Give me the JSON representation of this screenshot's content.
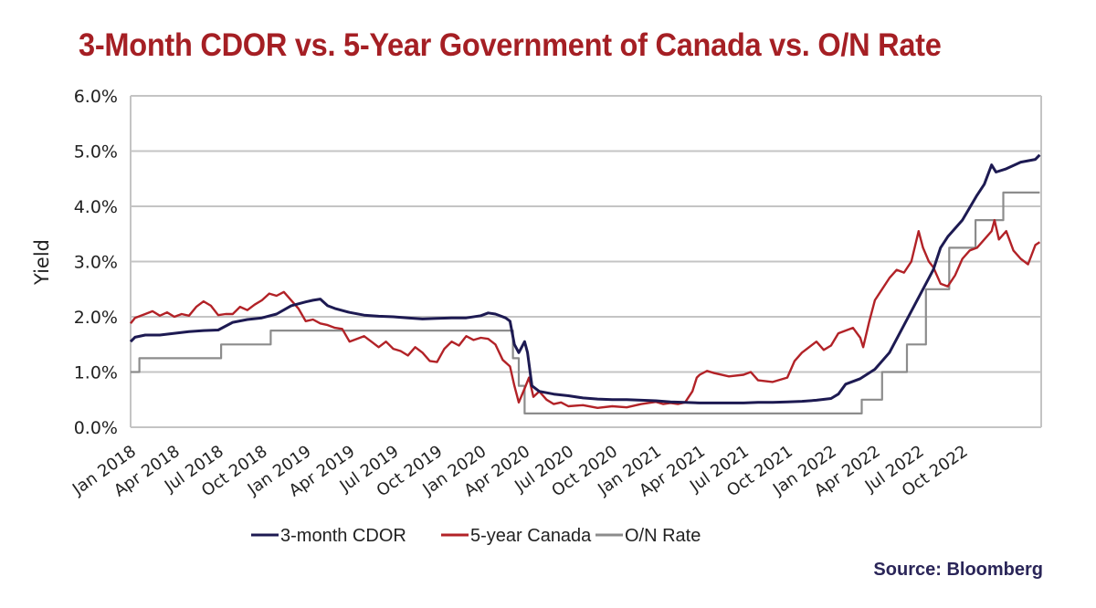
{
  "chart_data": {
    "type": "line",
    "title": "3-Month CDOR vs. 5-Year Government of Canada vs. O/N Rate",
    "xlabel": "",
    "ylabel": "Yield",
    "ylim": [
      0,
      6
    ],
    "yticks": [
      "0.0%",
      "1.0%",
      "2.0%",
      "3.0%",
      "4.0%",
      "5.0%",
      "6.0%"
    ],
    "ytick_values": [
      0,
      1,
      2,
      3,
      4,
      5,
      6
    ],
    "x_unit": "months since Jan 2018",
    "xlim": [
      0,
      60
    ],
    "xticks": [
      "Jan 2018",
      "Apr 2018",
      "Jul 2018",
      "Oct 2018",
      "Jan 2019",
      "Apr 2019",
      "Jul 2019",
      "Oct 2019",
      "Jan 2020",
      "Apr 2020",
      "Jul 2020",
      "Oct 2020",
      "Jan 2021",
      "Apr 2021",
      "Jul 2021",
      "Oct 2021",
      "Jan 2022",
      "Apr 2022",
      "Jul 2022",
      "Oct 2022"
    ],
    "xtick_values": [
      0,
      3,
      6,
      9,
      12,
      15,
      18,
      21,
      24,
      27,
      30,
      33,
      36,
      39,
      42,
      45,
      48,
      51,
      54,
      57
    ],
    "grid": "horizontal",
    "legend": "bottom",
    "series": [
      {
        "name": "3-month CDOR",
        "color": "#1d1a52",
        "points": [
          [
            0,
            1.55
          ],
          [
            0.3,
            1.63
          ],
          [
            1,
            1.67
          ],
          [
            2,
            1.67
          ],
          [
            3,
            1.7
          ],
          [
            4,
            1.73
          ],
          [
            5,
            1.75
          ],
          [
            6,
            1.76
          ],
          [
            7,
            1.9
          ],
          [
            8,
            1.95
          ],
          [
            9,
            1.98
          ],
          [
            10,
            2.05
          ],
          [
            11,
            2.2
          ],
          [
            12,
            2.27
          ],
          [
            12.5,
            2.3
          ],
          [
            13,
            2.32
          ],
          [
            13.5,
            2.2
          ],
          [
            14,
            2.15
          ],
          [
            15,
            2.08
          ],
          [
            16,
            2.03
          ],
          [
            17,
            2.01
          ],
          [
            18,
            2.0
          ],
          [
            19,
            1.98
          ],
          [
            20,
            1.96
          ],
          [
            21,
            1.97
          ],
          [
            22,
            1.98
          ],
          [
            23,
            1.98
          ],
          [
            24,
            2.02
          ],
          [
            24.5,
            2.07
          ],
          [
            25,
            2.05
          ],
          [
            25.7,
            1.98
          ],
          [
            26,
            1.92
          ],
          [
            26.3,
            1.5
          ],
          [
            26.6,
            1.35
          ],
          [
            27,
            1.55
          ],
          [
            27.2,
            1.35
          ],
          [
            27.5,
            0.75
          ],
          [
            28,
            0.65
          ],
          [
            29,
            0.6
          ],
          [
            30,
            0.57
          ],
          [
            31,
            0.53
          ],
          [
            32,
            0.51
          ],
          [
            33,
            0.5
          ],
          [
            34,
            0.5
          ],
          [
            35,
            0.49
          ],
          [
            36,
            0.48
          ],
          [
            37,
            0.46
          ],
          [
            38,
            0.45
          ],
          [
            39,
            0.44
          ],
          [
            40,
            0.44
          ],
          [
            41,
            0.44
          ],
          [
            42,
            0.44
          ],
          [
            43,
            0.45
          ],
          [
            44,
            0.45
          ],
          [
            45,
            0.46
          ],
          [
            46,
            0.47
          ],
          [
            47,
            0.49
          ],
          [
            48,
            0.52
          ],
          [
            48.5,
            0.6
          ],
          [
            49,
            0.78
          ],
          [
            50,
            0.88
          ],
          [
            51,
            1.05
          ],
          [
            52,
            1.35
          ],
          [
            53,
            1.85
          ],
          [
            54,
            2.35
          ],
          [
            55,
            2.85
          ],
          [
            55.5,
            3.25
          ],
          [
            56,
            3.45
          ],
          [
            57,
            3.75
          ],
          [
            58,
            4.2
          ],
          [
            58.5,
            4.4
          ],
          [
            59,
            4.75
          ],
          [
            59.3,
            4.62
          ],
          [
            60,
            4.68
          ],
          [
            61,
            4.8
          ],
          [
            62,
            4.85
          ],
          [
            62.3,
            4.93
          ]
        ]
      },
      {
        "name": "5-year Canada",
        "color": "#b22227",
        "points": [
          [
            0,
            1.88
          ],
          [
            0.3,
            1.98
          ],
          [
            1,
            2.05
          ],
          [
            1.5,
            2.1
          ],
          [
            2,
            2.02
          ],
          [
            2.5,
            2.08
          ],
          [
            3,
            2.0
          ],
          [
            3.5,
            2.05
          ],
          [
            4,
            2.02
          ],
          [
            4.5,
            2.18
          ],
          [
            5,
            2.28
          ],
          [
            5.5,
            2.2
          ],
          [
            6,
            2.03
          ],
          [
            6.5,
            2.05
          ],
          [
            7,
            2.05
          ],
          [
            7.5,
            2.18
          ],
          [
            8,
            2.12
          ],
          [
            8.5,
            2.22
          ],
          [
            9,
            2.3
          ],
          [
            9.5,
            2.42
          ],
          [
            10,
            2.38
          ],
          [
            10.5,
            2.45
          ],
          [
            11,
            2.3
          ],
          [
            11.5,
            2.15
          ],
          [
            12,
            1.92
          ],
          [
            12.5,
            1.95
          ],
          [
            13,
            1.88
          ],
          [
            13.5,
            1.85
          ],
          [
            14,
            1.8
          ],
          [
            14.5,
            1.78
          ],
          [
            15,
            1.55
          ],
          [
            15.5,
            1.6
          ],
          [
            16,
            1.65
          ],
          [
            16.5,
            1.55
          ],
          [
            17,
            1.45
          ],
          [
            17.5,
            1.55
          ],
          [
            18,
            1.42
          ],
          [
            18.5,
            1.38
          ],
          [
            19,
            1.3
          ],
          [
            19.5,
            1.45
          ],
          [
            20,
            1.35
          ],
          [
            20.5,
            1.2
          ],
          [
            21,
            1.18
          ],
          [
            21.5,
            1.42
          ],
          [
            22,
            1.55
          ],
          [
            22.5,
            1.48
          ],
          [
            23,
            1.65
          ],
          [
            23.5,
            1.58
          ],
          [
            24,
            1.62
          ],
          [
            24.5,
            1.6
          ],
          [
            25,
            1.5
          ],
          [
            25.5,
            1.22
          ],
          [
            26,
            1.1
          ],
          [
            26.3,
            0.75
          ],
          [
            26.6,
            0.45
          ],
          [
            27,
            0.7
          ],
          [
            27.3,
            0.9
          ],
          [
            27.6,
            0.55
          ],
          [
            28,
            0.65
          ],
          [
            28.5,
            0.5
          ],
          [
            29,
            0.42
          ],
          [
            29.5,
            0.45
          ],
          [
            30,
            0.38
          ],
          [
            31,
            0.4
          ],
          [
            32,
            0.35
          ],
          [
            33,
            0.38
          ],
          [
            34,
            0.36
          ],
          [
            35,
            0.42
          ],
          [
            36,
            0.46
          ],
          [
            36.5,
            0.42
          ],
          [
            37,
            0.44
          ],
          [
            37.5,
            0.42
          ],
          [
            38,
            0.45
          ],
          [
            38.5,
            0.65
          ],
          [
            38.8,
            0.9
          ],
          [
            39,
            0.95
          ],
          [
            39.5,
            1.02
          ],
          [
            40,
            0.98
          ],
          [
            41,
            0.92
          ],
          [
            42,
            0.95
          ],
          [
            42.5,
            1.0
          ],
          [
            43,
            0.85
          ],
          [
            44,
            0.82
          ],
          [
            45,
            0.9
          ],
          [
            45.5,
            1.2
          ],
          [
            46,
            1.35
          ],
          [
            47,
            1.55
          ],
          [
            47.5,
            1.4
          ],
          [
            48,
            1.48
          ],
          [
            48.5,
            1.7
          ],
          [
            49,
            1.75
          ],
          [
            49.5,
            1.8
          ],
          [
            50,
            1.62
          ],
          [
            50.2,
            1.45
          ],
          [
            50.6,
            1.9
          ],
          [
            51,
            2.3
          ],
          [
            51.5,
            2.5
          ],
          [
            52,
            2.7
          ],
          [
            52.5,
            2.85
          ],
          [
            53,
            2.8
          ],
          [
            53.5,
            3.0
          ],
          [
            54,
            3.55
          ],
          [
            54.3,
            3.25
          ],
          [
            54.7,
            3.0
          ],
          [
            55,
            2.9
          ],
          [
            55.5,
            2.6
          ],
          [
            56,
            2.55
          ],
          [
            56.5,
            2.75
          ],
          [
            57,
            3.05
          ],
          [
            57.5,
            3.2
          ],
          [
            58,
            3.25
          ],
          [
            58.5,
            3.4
          ],
          [
            59,
            3.55
          ],
          [
            59.2,
            3.75
          ],
          [
            59.5,
            3.4
          ],
          [
            60,
            3.55
          ],
          [
            60.5,
            3.2
          ],
          [
            61,
            3.05
          ],
          [
            61.5,
            2.95
          ],
          [
            62,
            3.3
          ],
          [
            62.3,
            3.35
          ]
        ]
      },
      {
        "name": "O/N Rate",
        "color": "#8c8c8c",
        "step": true,
        "points": [
          [
            0,
            1.0
          ],
          [
            0.6,
            1.0
          ],
          [
            0.6,
            1.25
          ],
          [
            6.2,
            1.25
          ],
          [
            6.2,
            1.5
          ],
          [
            9.6,
            1.5
          ],
          [
            9.6,
            1.75
          ],
          [
            26.2,
            1.75
          ],
          [
            26.2,
            1.25
          ],
          [
            26.6,
            1.25
          ],
          [
            26.6,
            0.75
          ],
          [
            27,
            0.75
          ],
          [
            27,
            0.25
          ],
          [
            50.1,
            0.25
          ],
          [
            50.1,
            0.5
          ],
          [
            51.5,
            0.5
          ],
          [
            51.5,
            1.0
          ],
          [
            53.2,
            1.0
          ],
          [
            53.2,
            1.5
          ],
          [
            54.5,
            1.5
          ],
          [
            54.5,
            2.5
          ],
          [
            56.1,
            2.5
          ],
          [
            56.1,
            3.25
          ],
          [
            57.9,
            3.25
          ],
          [
            57.9,
            3.75
          ],
          [
            59.8,
            3.75
          ],
          [
            59.8,
            4.25
          ],
          [
            62.3,
            4.25
          ]
        ]
      }
    ]
  },
  "source": "Source: Bloomberg"
}
